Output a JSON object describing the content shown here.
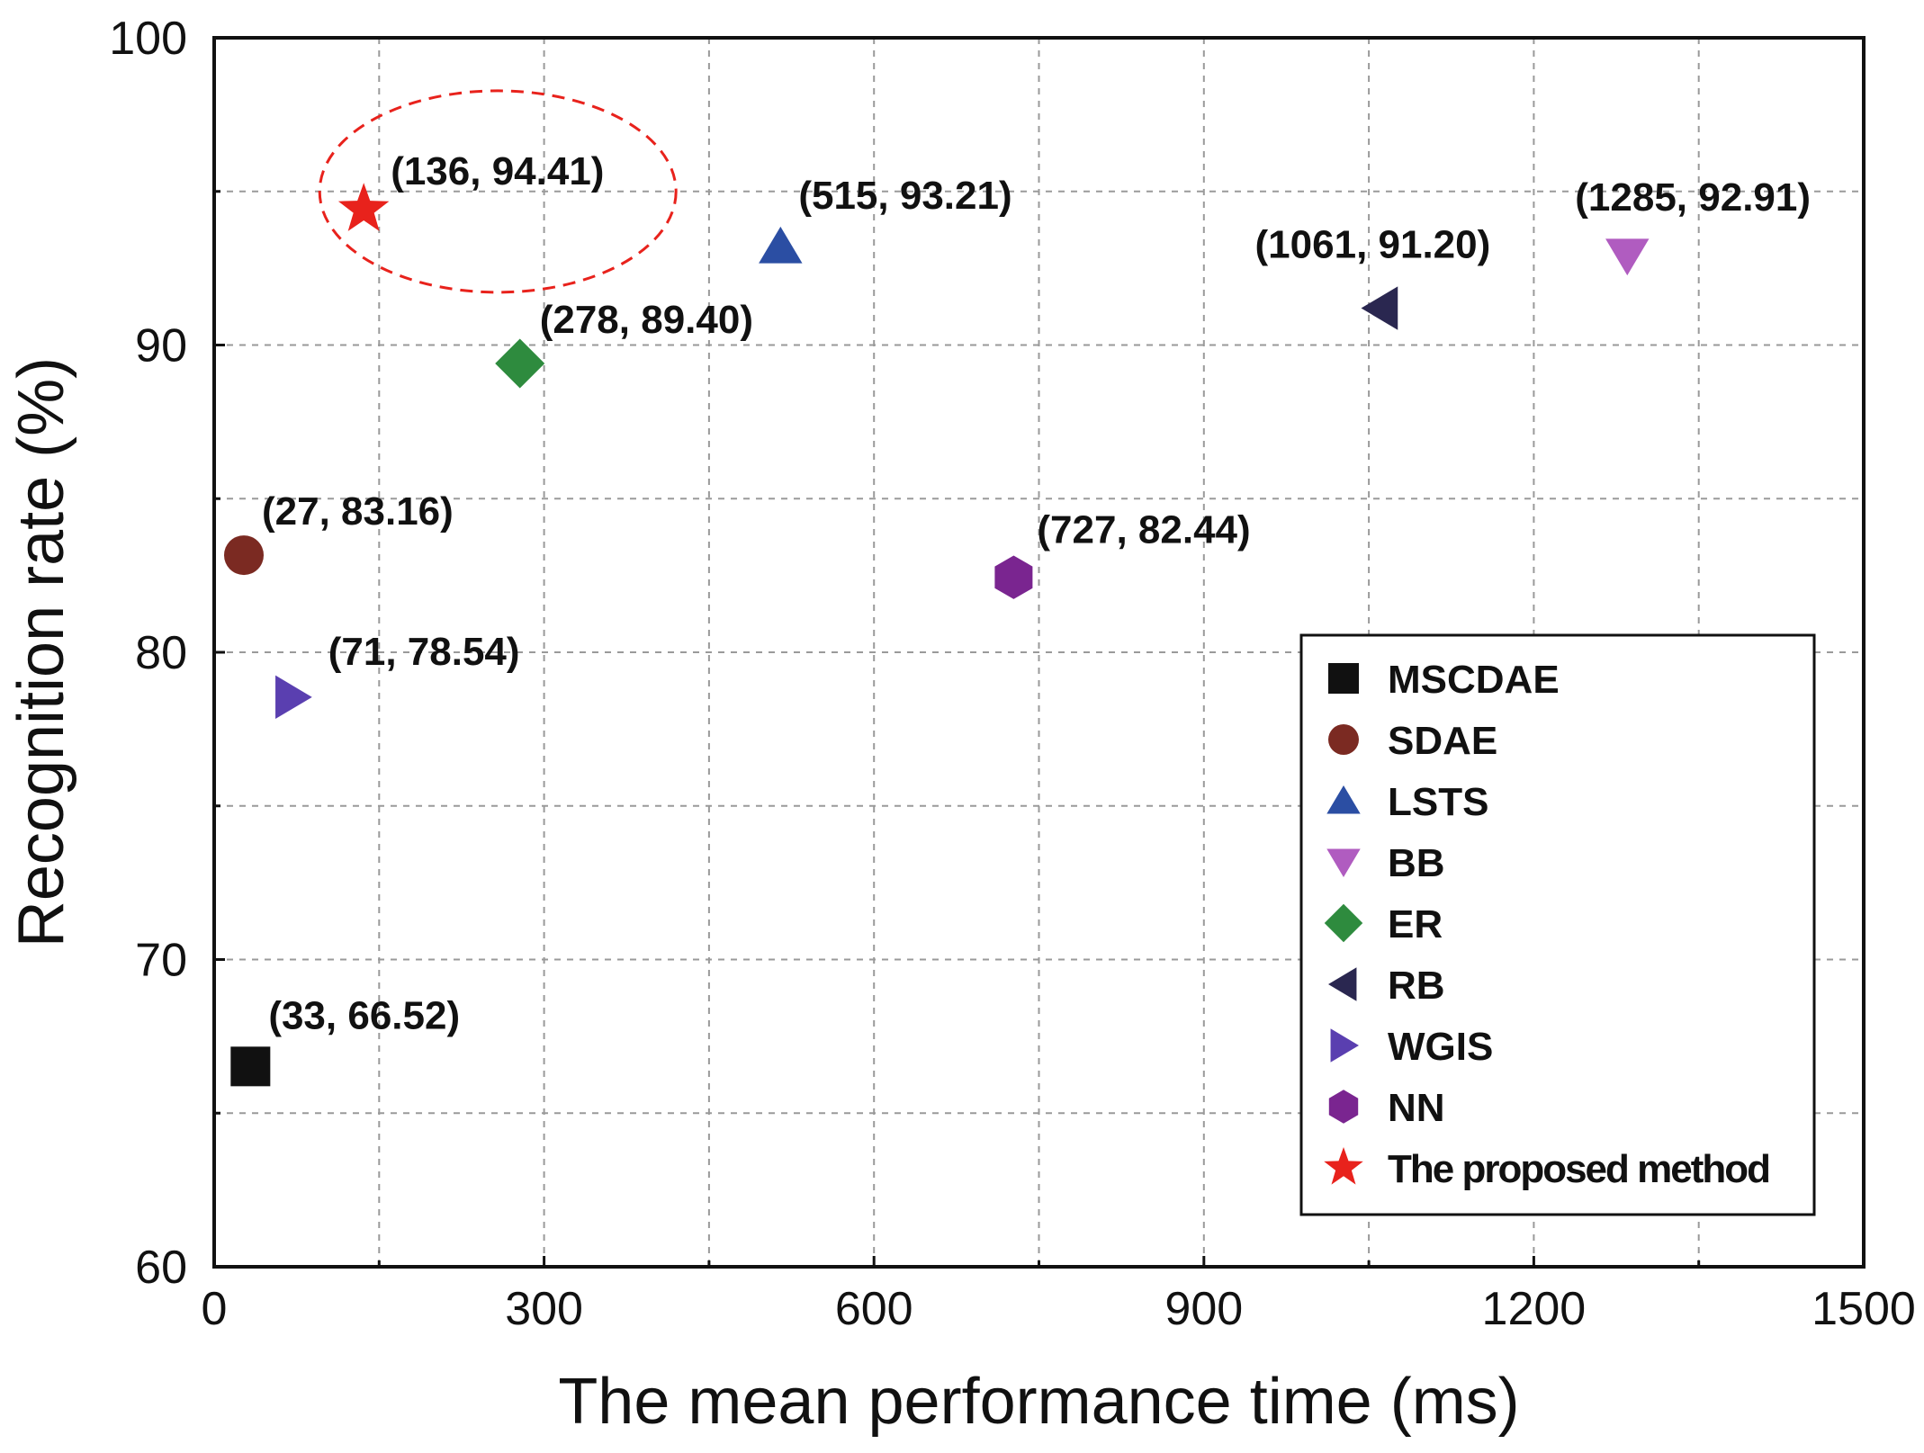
{
  "chart_data": {
    "type": "scatter",
    "title": "",
    "xlabel": "The mean performance time (ms)",
    "ylabel": "Recognition rate (%)",
    "xlim": [
      0,
      1500
    ],
    "ylim": [
      60,
      100
    ],
    "x_ticks": [
      0,
      300,
      600,
      900,
      1200,
      1500
    ],
    "x_tick_labels": [
      "0",
      "300",
      "600",
      "900",
      "1200",
      "1500"
    ],
    "y_ticks": [
      60,
      70,
      80,
      90,
      100
    ],
    "y_tick_labels": [
      "60",
      "70",
      "80",
      "90",
      "100"
    ],
    "x_minor_grid": [
      150,
      450,
      750,
      1050,
      1350
    ],
    "y_minor_grid": [
      65,
      75,
      85,
      95
    ],
    "grid": true,
    "legend_position": "bottom-right",
    "series": [
      {
        "name": "MSCDAE",
        "x": 33,
        "y": 66.52,
        "label": "(33, 66.52)",
        "marker": "square",
        "color": "#111111"
      },
      {
        "name": "SDAE",
        "x": 27,
        "y": 83.16,
        "label": "(27, 83.16)",
        "marker": "circle",
        "color": "#7b2a22"
      },
      {
        "name": "LSTS",
        "x": 515,
        "y": 93.21,
        "label": "(515, 93.21)",
        "marker": "triangle-up",
        "color": "#2b4ea3"
      },
      {
        "name": "BB",
        "x": 1285,
        "y": 92.91,
        "label": "(1285, 92.91)",
        "marker": "triangle-down",
        "color": "#b05cc0"
      },
      {
        "name": "ER",
        "x": 278,
        "y": 89.4,
        "label": "(278, 89.40)",
        "marker": "diamond",
        "color": "#2e8b3e"
      },
      {
        "name": "RB",
        "x": 1061,
        "y": 91.2,
        "label": "(1061, 91.20)",
        "marker": "triangle-left",
        "color": "#2a2750"
      },
      {
        "name": "WGIS",
        "x": 71,
        "y": 78.54,
        "label": "(71, 78.54)",
        "marker": "triangle-right",
        "color": "#5a3fb0"
      },
      {
        "name": "NN",
        "x": 727,
        "y": 82.44,
        "label": "(727, 82.44)",
        "marker": "hexagon",
        "color": "#7a2590"
      },
      {
        "name": "The proposed method",
        "x": 136,
        "y": 94.41,
        "label": "(136, 94.41)",
        "marker": "star",
        "color": "#e8221c"
      }
    ],
    "annotations": [
      {
        "type": "dashed-ellipse",
        "around": "The proposed method",
        "color": "#e8221c"
      }
    ]
  }
}
